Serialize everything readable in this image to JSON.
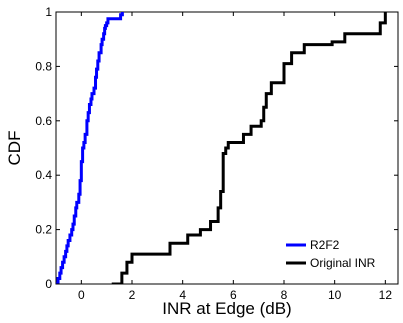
{
  "chart_data": {
    "type": "line",
    "title": "",
    "xlabel": "INR at Edge (dB)",
    "ylabel": "CDF",
    "xlim": [
      -1,
      12.5
    ],
    "ylim": [
      0,
      1
    ],
    "xticks": [
      0,
      2,
      4,
      6,
      8,
      10,
      12
    ],
    "yticks": [
      0,
      0.2,
      0.4,
      0.6,
      0.8,
      1
    ],
    "xtick_labels": [
      "0",
      "2",
      "4",
      "6",
      "8",
      "10",
      "12"
    ],
    "ytick_labels": [
      "0",
      "0.2",
      "0.4",
      "0.6",
      "0.8",
      "1"
    ],
    "grid": false,
    "legend_position": "bottom-right",
    "step": true,
    "series": [
      {
        "name": "R2F2",
        "color": "#0000ff",
        "x": [
          -1.0,
          -0.92,
          -0.85,
          -0.8,
          -0.74,
          -0.68,
          -0.62,
          -0.57,
          -0.52,
          -0.45,
          -0.38,
          -0.33,
          -0.28,
          -0.22,
          -0.18,
          -0.1,
          -0.05,
          0.0,
          0.05,
          0.1,
          0.15,
          0.22,
          0.27,
          0.32,
          0.38,
          0.42,
          0.5,
          0.56,
          0.6,
          0.65,
          0.7,
          0.78,
          0.82,
          0.88,
          0.92,
          0.95,
          1.0,
          1.05,
          1.55,
          1.62
        ],
        "y": [
          0.0,
          0.02,
          0.04,
          0.06,
          0.08,
          0.1,
          0.12,
          0.14,
          0.16,
          0.18,
          0.2,
          0.22,
          0.25,
          0.28,
          0.3,
          0.33,
          0.38,
          0.45,
          0.5,
          0.52,
          0.55,
          0.6,
          0.63,
          0.66,
          0.68,
          0.7,
          0.72,
          0.76,
          0.79,
          0.82,
          0.85,
          0.88,
          0.9,
          0.92,
          0.94,
          0.95,
          0.96,
          0.975,
          0.99,
          1.0
        ]
      },
      {
        "name": "Original INR",
        "color": "#000000",
        "x": [
          1.2,
          1.6,
          1.8,
          2.0,
          3.5,
          4.2,
          4.7,
          5.1,
          5.4,
          5.5,
          5.6,
          5.7,
          5.8,
          6.4,
          6.7,
          7.1,
          7.2,
          7.3,
          7.5,
          8.0,
          8.3,
          8.8,
          9.9,
          10.4,
          11.2,
          11.8,
          12.0
        ],
        "y": [
          0.0,
          0.04,
          0.08,
          0.11,
          0.15,
          0.18,
          0.2,
          0.23,
          0.28,
          0.34,
          0.48,
          0.5,
          0.52,
          0.55,
          0.58,
          0.6,
          0.65,
          0.7,
          0.74,
          0.81,
          0.85,
          0.88,
          0.89,
          0.92,
          0.92,
          0.96,
          1.0
        ]
      }
    ]
  }
}
